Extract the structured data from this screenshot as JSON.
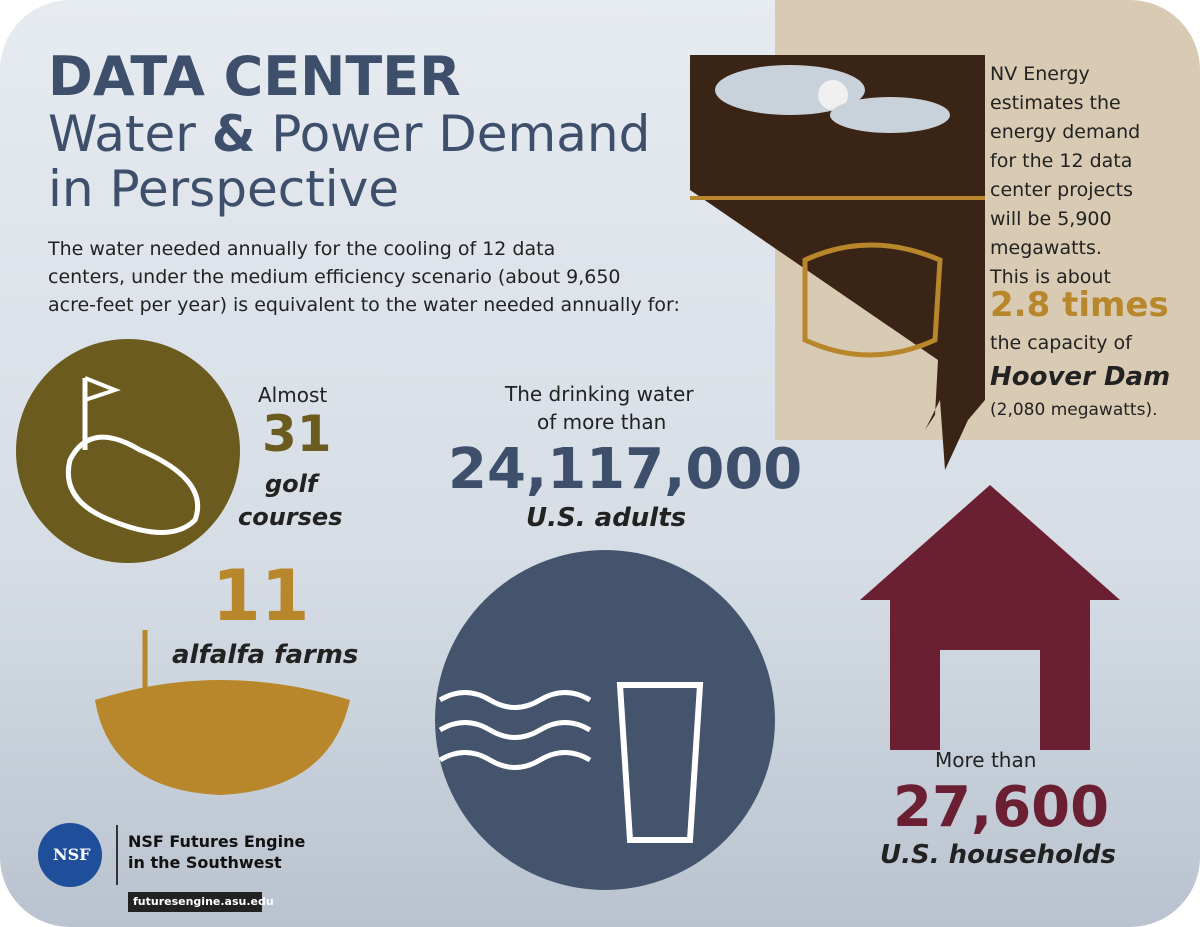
{
  "header": {
    "title_line1": "DATA CENTER",
    "title_line2_a": "Water ",
    "title_line2_amp": "&",
    "title_line2_b": " Power Demand",
    "title_line3": "in Perspective"
  },
  "intro": {
    "lines": [
      "The water needed annually for the cooling of 12 data",
      "centers, under the medium efficiency scenario (about 9,650",
      "acre-feet per year) is equivalent to the water needed annually for:"
    ]
  },
  "golf": {
    "prefix": "Almost",
    "number": "31",
    "label_line1": "golf",
    "label_line2": "courses"
  },
  "alfalfa": {
    "number": "11",
    "label": "alfalfa farms"
  },
  "adults": {
    "prefix_line1": "The drinking water",
    "prefix_line2": "of more than",
    "number": "24,117,000",
    "label": "U.S. adults"
  },
  "households": {
    "prefix": "More than",
    "number": "27,600",
    "label": "U.S. households"
  },
  "energy": {
    "lines": [
      "NV Energy",
      "estimates the",
      "energy demand",
      "for the 12 data",
      "center projects",
      "will be 5,900",
      "megawatts.",
      "This is about"
    ],
    "highlight": "2.8 times",
    "after": "the capacity of",
    "dam": "Hoover Dam",
    "dam_capacity": "(2,080 megawatts)."
  },
  "footer": {
    "logo": "NSF",
    "org_line1": "NSF Futures Engine",
    "org_line2": "in the Southwest",
    "url": "futuresengine.asu.edu"
  }
}
